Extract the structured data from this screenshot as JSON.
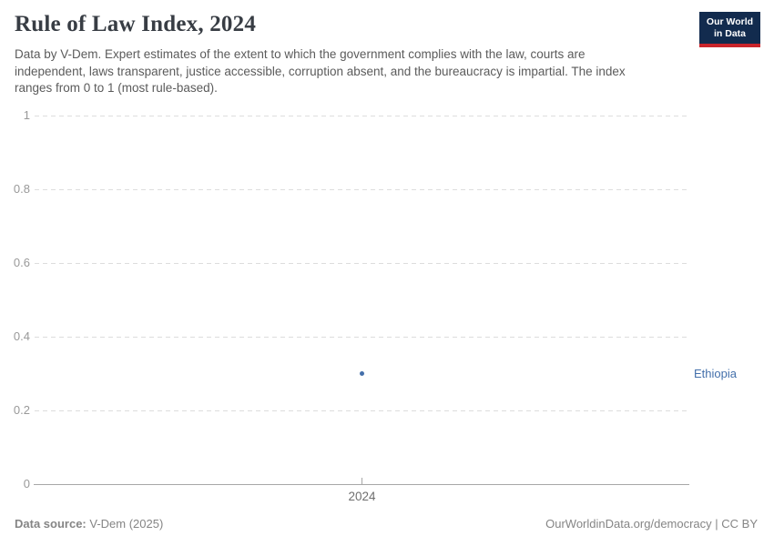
{
  "header": {
    "title": "Rule of Law Index, 2024",
    "subtitle": "Data by V-Dem. Expert estimates of the extent to which the government complies with the law, courts are independent, laws transparent, justice accessible, corruption absent, and the bureaucracy is impartial. The index ranges from 0 to 1 (most rule-based).",
    "logo": {
      "line1": "Our World",
      "line2": "in Data"
    }
  },
  "chart_data": {
    "type": "scatter",
    "title": "Rule of Law Index, 2024",
    "x": [
      2024
    ],
    "series": [
      {
        "name": "Ethiopia",
        "values": [
          0.3
        ]
      }
    ],
    "xlabel": "",
    "ylabel": "",
    "ylim": [
      0,
      1
    ],
    "yticks": [
      0,
      0.2,
      0.4,
      0.6,
      0.8,
      1
    ],
    "xtick_labels": [
      "2024"
    ],
    "grid": "horizontal-dashed",
    "legend_position": "entity-label-right-of-plot"
  },
  "colors": {
    "series_blue": "#4470ab",
    "logo_navy": "#122b4e",
    "logo_red": "#c9242b",
    "title_text": "#383d44",
    "subtitle_text": "#5b5b5b",
    "axis_line": "#a7a7a7",
    "gridline": "#dddddd",
    "y_tick_text": "#999999",
    "x_tick_text": "#6e6e6e",
    "footer_text": "#858585"
  },
  "footer": {
    "source_label": "Data source:",
    "source_value": "V-Dem (2025)",
    "credit": "OurWorldinData.org/democracy | CC BY"
  }
}
